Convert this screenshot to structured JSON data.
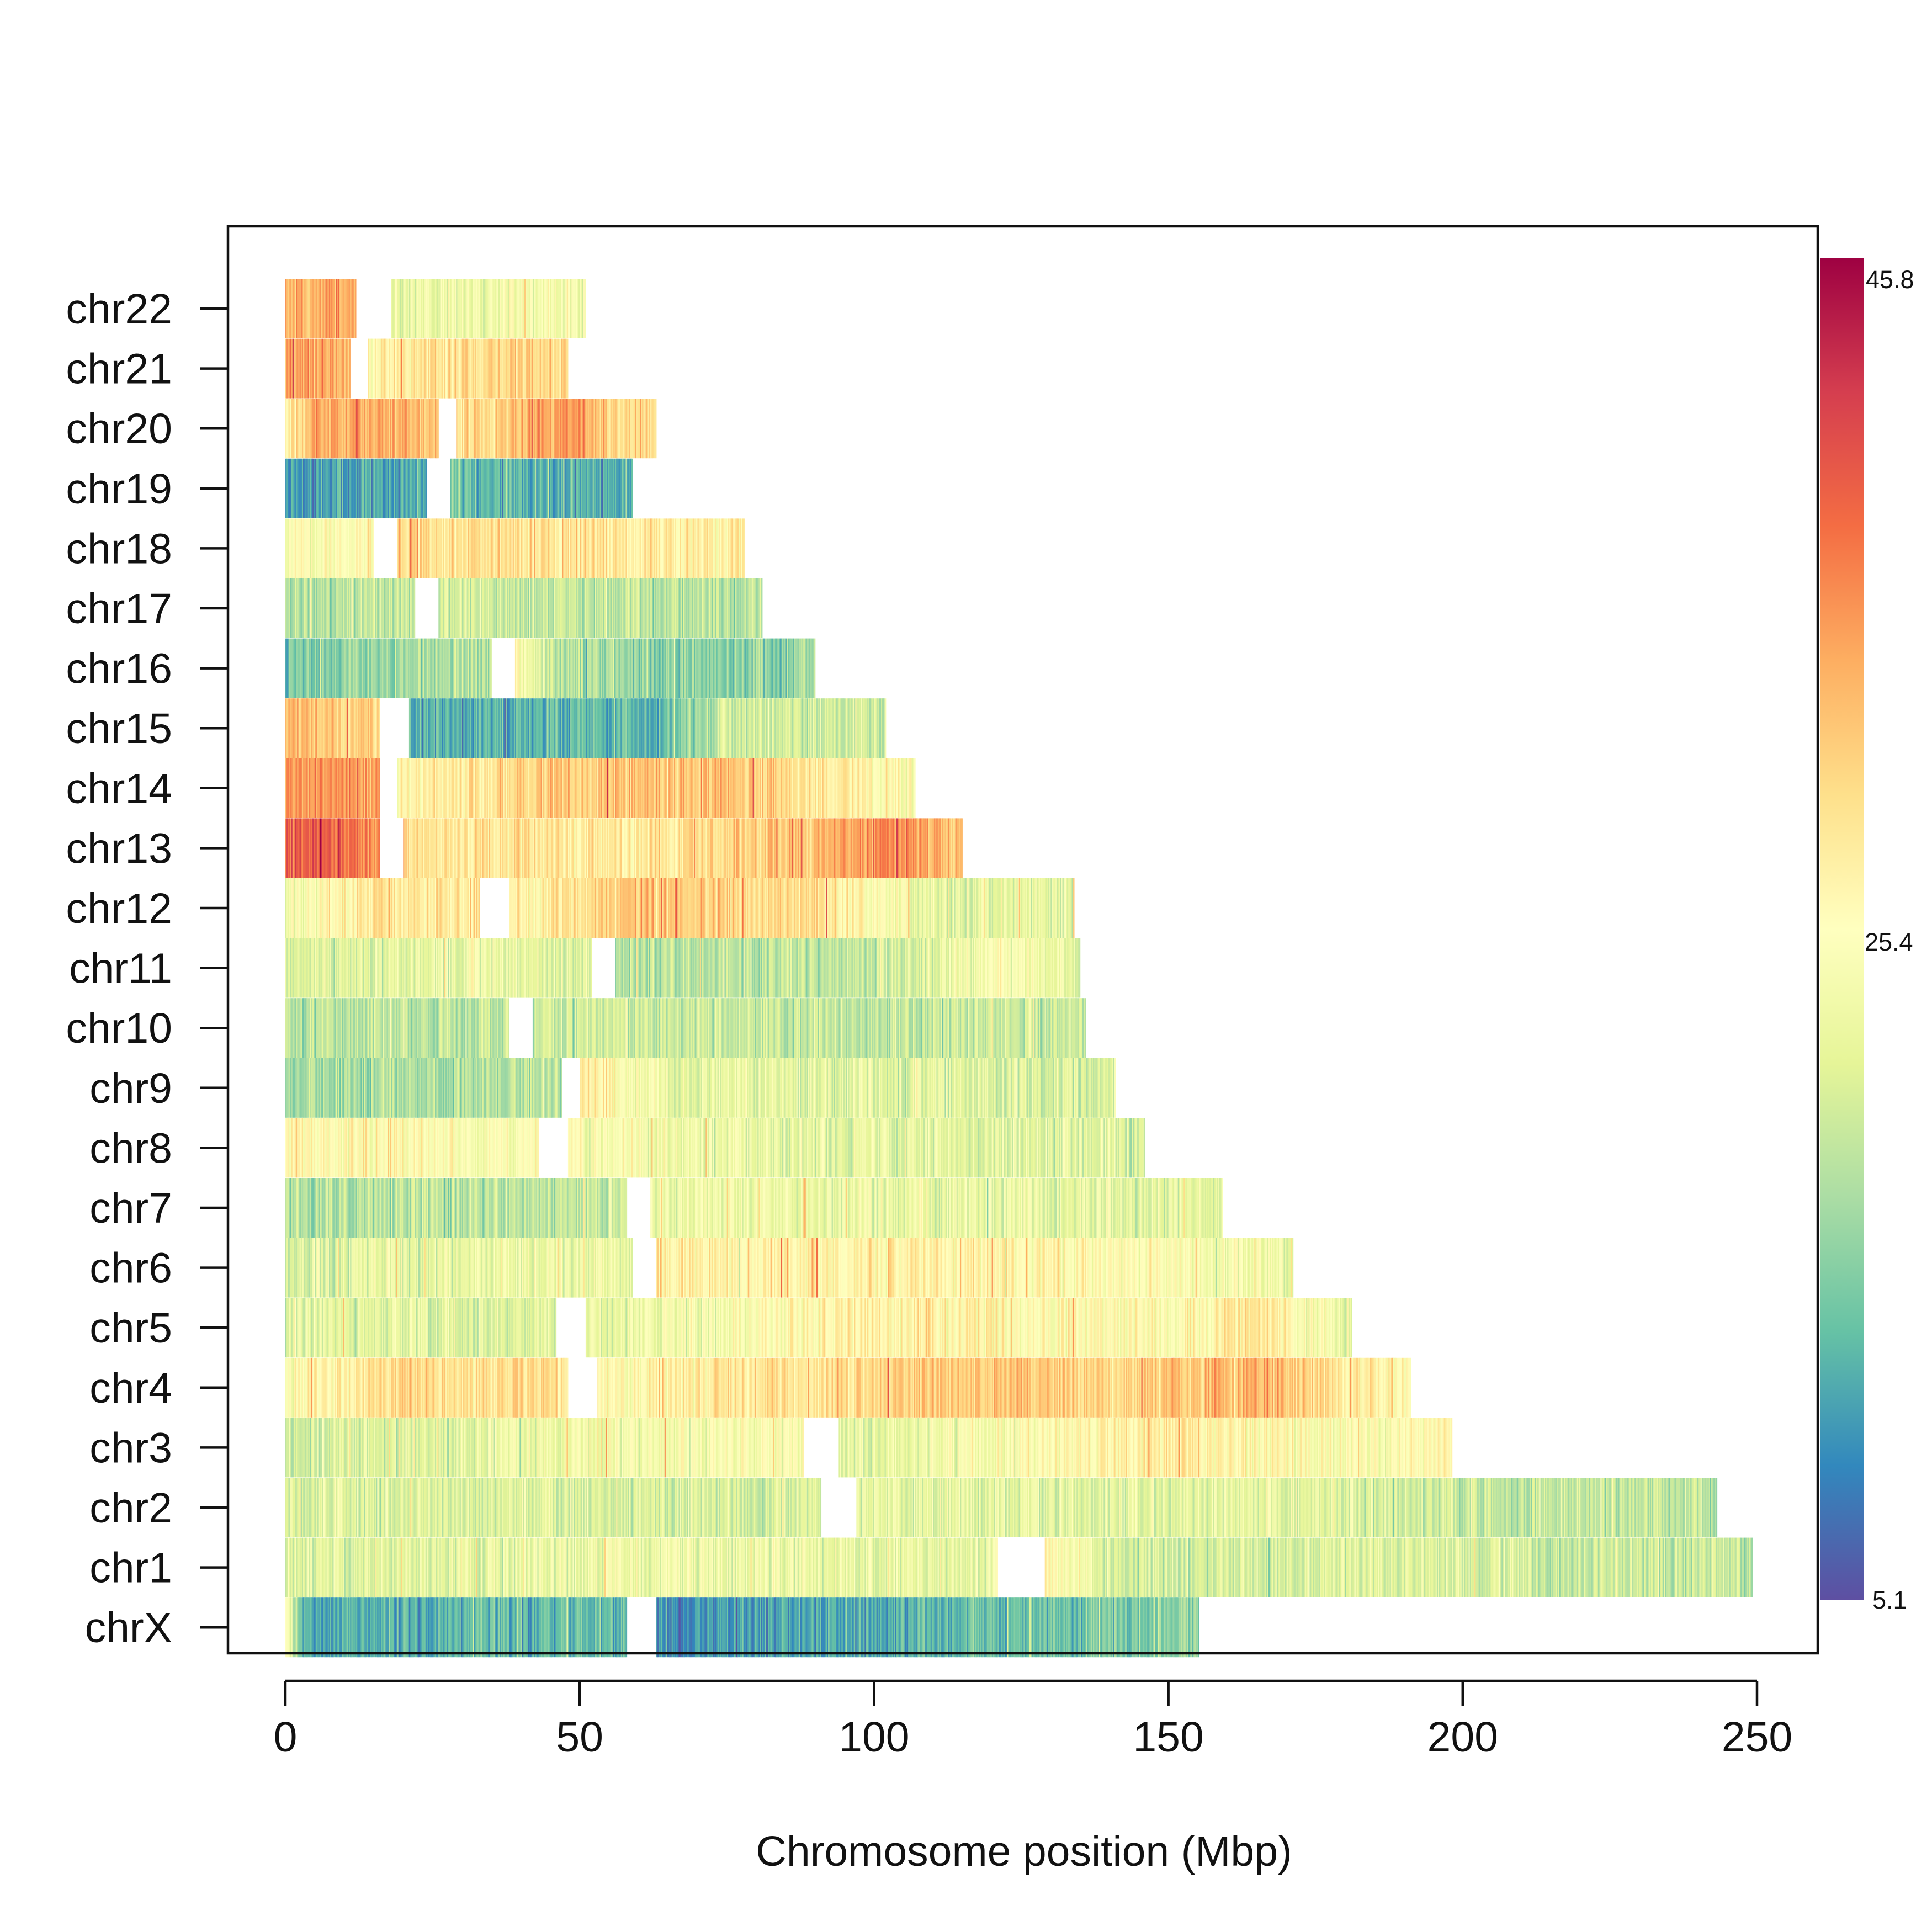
{
  "chart_data": {
    "type": "heatmap",
    "title": "",
    "xlabel": "Chromosome position (Mbp)",
    "ylabel": "",
    "xlim": [
      0,
      250
    ],
    "x_ticks": [
      0,
      50,
      100,
      150,
      200,
      250
    ],
    "x_tick_labels": [
      "0",
      "50",
      "100",
      "150",
      "200",
      "250"
    ],
    "colorbar": {
      "min": 5.1,
      "mid": 25.4,
      "max": 45.8,
      "tick_labels": [
        "45.8",
        "25.4",
        "5.1"
      ],
      "palette": [
        "#5e4fa2",
        "#3288bd",
        "#66c2a5",
        "#abdda4",
        "#e6f598",
        "#ffffbf",
        "#fee08b",
        "#fdae61",
        "#f46d43",
        "#d53e4f",
        "#9e0142"
      ]
    },
    "chromosomes": [
      {
        "name": "chr22",
        "length": 51,
        "gaps": [
          [
            12,
            18
          ]
        ],
        "mean": 27.5,
        "profile": [
          [
            0,
            33
          ],
          [
            12,
            33
          ],
          [
            18,
            23
          ],
          [
            51,
            24
          ]
        ]
      },
      {
        "name": "chr21",
        "length": 48,
        "gaps": [
          [
            11,
            14
          ]
        ],
        "mean": 28.0,
        "profile": [
          [
            0,
            34
          ],
          [
            11,
            33
          ],
          [
            14,
            26
          ],
          [
            30,
            30
          ],
          [
            48,
            30
          ]
        ]
      },
      {
        "name": "chr20",
        "length": 63,
        "gaps": [
          [
            26,
            29
          ]
        ],
        "mean": 29.5,
        "profile": [
          [
            0,
            26
          ],
          [
            5,
            34
          ],
          [
            26,
            32
          ],
          [
            29,
            29
          ],
          [
            48,
            35
          ],
          [
            56,
            31
          ],
          [
            63,
            28
          ]
        ]
      },
      {
        "name": "chr19",
        "length": 59,
        "gaps": [
          [
            24,
            28
          ]
        ],
        "mean": 13.0,
        "profile": [
          [
            0,
            11
          ],
          [
            24,
            12
          ],
          [
            28,
            13
          ],
          [
            45,
            12
          ],
          [
            59,
            12
          ]
        ]
      },
      {
        "name": "chr18",
        "length": 78,
        "gaps": [
          [
            15,
            19
          ]
        ],
        "mean": 27.0,
        "profile": [
          [
            0,
            25
          ],
          [
            15,
            26
          ],
          [
            19,
            29
          ],
          [
            40,
            29
          ],
          [
            60,
            28
          ],
          [
            78,
            27
          ]
        ]
      },
      {
        "name": "chr17",
        "length": 81,
        "gaps": [
          [
            22,
            26
          ]
        ],
        "mean": 19.0,
        "profile": [
          [
            0,
            18
          ],
          [
            22,
            19
          ],
          [
            26,
            20
          ],
          [
            50,
            19
          ],
          [
            81,
            18
          ]
        ]
      },
      {
        "name": "chr16",
        "length": 90,
        "gaps": [
          [
            35,
            39
          ]
        ],
        "mean": 17.5,
        "profile": [
          [
            0,
            14
          ],
          [
            20,
            17
          ],
          [
            35,
            18
          ],
          [
            39,
            26
          ],
          [
            46,
            18
          ],
          [
            70,
            15
          ],
          [
            90,
            17
          ]
        ]
      },
      {
        "name": "chr15",
        "length": 102,
        "gaps": [
          [
            16,
            21
          ]
        ],
        "mean": 19.5,
        "profile": [
          [
            0,
            32
          ],
          [
            16,
            30
          ],
          [
            21,
            12
          ],
          [
            65,
            13
          ],
          [
            75,
            20
          ],
          [
            102,
            20
          ]
        ]
      },
      {
        "name": "chr14",
        "length": 107,
        "gaps": [
          [
            16,
            19
          ]
        ],
        "mean": 29.0,
        "profile": [
          [
            0,
            36
          ],
          [
            16,
            34
          ],
          [
            19,
            26
          ],
          [
            40,
            30
          ],
          [
            60,
            32
          ],
          [
            80,
            31
          ],
          [
            107,
            25
          ]
        ]
      },
      {
        "name": "chr13",
        "length": 115,
        "gaps": [
          [
            16,
            20
          ]
        ],
        "mean": 30.5,
        "profile": [
          [
            0,
            39
          ],
          [
            16,
            37
          ],
          [
            20,
            29
          ],
          [
            60,
            28
          ],
          [
            90,
            33
          ],
          [
            105,
            36
          ],
          [
            115,
            31
          ]
        ]
      },
      {
        "name": "chr12",
        "length": 134,
        "gaps": [
          [
            33,
            38
          ]
        ],
        "mean": 25.0,
        "profile": [
          [
            0,
            23
          ],
          [
            15,
            29
          ],
          [
            33,
            28
          ],
          [
            38,
            26
          ],
          [
            60,
            32
          ],
          [
            90,
            29
          ],
          [
            110,
            22
          ],
          [
            134,
            22
          ]
        ]
      },
      {
        "name": "chr11",
        "length": 135,
        "gaps": [
          [
            52,
            56
          ]
        ],
        "mean": 20.0,
        "profile": [
          [
            0,
            20
          ],
          [
            35,
            23
          ],
          [
            52,
            21
          ],
          [
            56,
            18
          ],
          [
            100,
            19
          ],
          [
            125,
            25
          ],
          [
            135,
            21
          ]
        ]
      },
      {
        "name": "chr10",
        "length": 136,
        "gaps": [
          [
            38,
            42
          ]
        ],
        "mean": 19.5,
        "profile": [
          [
            0,
            18
          ],
          [
            38,
            19
          ],
          [
            42,
            20
          ],
          [
            100,
            19
          ],
          [
            136,
            20
          ]
        ]
      },
      {
        "name": "chr9",
        "length": 141,
        "gaps": [
          [
            47,
            50
          ]
        ],
        "mean": 20.5,
        "profile": [
          [
            0,
            17
          ],
          [
            47,
            18
          ],
          [
            50,
            28
          ],
          [
            65,
            22
          ],
          [
            141,
            21
          ]
        ]
      },
      {
        "name": "chr8",
        "length": 146,
        "gaps": [
          [
            43,
            48
          ]
        ],
        "mean": 22.5,
        "profile": [
          [
            0,
            26
          ],
          [
            43,
            25
          ],
          [
            48,
            24
          ],
          [
            100,
            22
          ],
          [
            146,
            21
          ]
        ]
      },
      {
        "name": "chr7",
        "length": 159,
        "gaps": [
          [
            58,
            62
          ]
        ],
        "mean": 21.0,
        "profile": [
          [
            0,
            18
          ],
          [
            58,
            19
          ],
          [
            62,
            23
          ],
          [
            159,
            22
          ]
        ]
      },
      {
        "name": "chr6",
        "length": 171,
        "gaps": [
          [
            59,
            63
          ]
        ],
        "mean": 24.5,
        "profile": [
          [
            0,
            21
          ],
          [
            59,
            23
          ],
          [
            63,
            27
          ],
          [
            120,
            27
          ],
          [
            160,
            24
          ],
          [
            171,
            22
          ]
        ]
      },
      {
        "name": "chr5",
        "length": 181,
        "gaps": [
          [
            46,
            51
          ]
        ],
        "mean": 23.5,
        "profile": [
          [
            0,
            22
          ],
          [
            46,
            21
          ],
          [
            51,
            22
          ],
          [
            100,
            27
          ],
          [
            150,
            25
          ],
          [
            165,
            29
          ],
          [
            181,
            22
          ]
        ]
      },
      {
        "name": "chr4",
        "length": 191,
        "gaps": [
          [
            48,
            53
          ]
        ],
        "mean": 25.0,
        "profile": [
          [
            0,
            25
          ],
          [
            20,
            30
          ],
          [
            48,
            29
          ],
          [
            53,
            26
          ],
          [
            125,
            32
          ],
          [
            140,
            30
          ],
          [
            165,
            33
          ],
          [
            191,
            26
          ]
        ]
      },
      {
        "name": "chr3",
        "length": 198,
        "gaps": [
          [
            88,
            94
          ]
        ],
        "mean": 23.5,
        "profile": [
          [
            0,
            20
          ],
          [
            60,
            24
          ],
          [
            88,
            25
          ],
          [
            94,
            21
          ],
          [
            150,
            28
          ],
          [
            180,
            24
          ],
          [
            198,
            27
          ]
        ]
      },
      {
        "name": "chr2",
        "length": 243,
        "gaps": [
          [
            91,
            97
          ]
        ],
        "mean": 21.0,
        "profile": [
          [
            0,
            21
          ],
          [
            91,
            21
          ],
          [
            97,
            22
          ],
          [
            180,
            22
          ],
          [
            200,
            19
          ],
          [
            243,
            19
          ]
        ]
      },
      {
        "name": "chr1",
        "length": 249,
        "gaps": [
          [
            121,
            129
          ]
        ],
        "mean": 22.0,
        "profile": [
          [
            0,
            21
          ],
          [
            60,
            23
          ],
          [
            121,
            22
          ],
          [
            129,
            27
          ],
          [
            142,
            20
          ],
          [
            190,
            21
          ],
          [
            249,
            19
          ]
        ]
      },
      {
        "name": "chrX",
        "length": 155,
        "gaps": [
          [
            58,
            63
          ]
        ],
        "mean": 13.0,
        "profile": [
          [
            0,
            26
          ],
          [
            3,
            12
          ],
          [
            58,
            13
          ],
          [
            63,
            10
          ],
          [
            120,
            13
          ],
          [
            155,
            16
          ]
        ]
      }
    ]
  }
}
